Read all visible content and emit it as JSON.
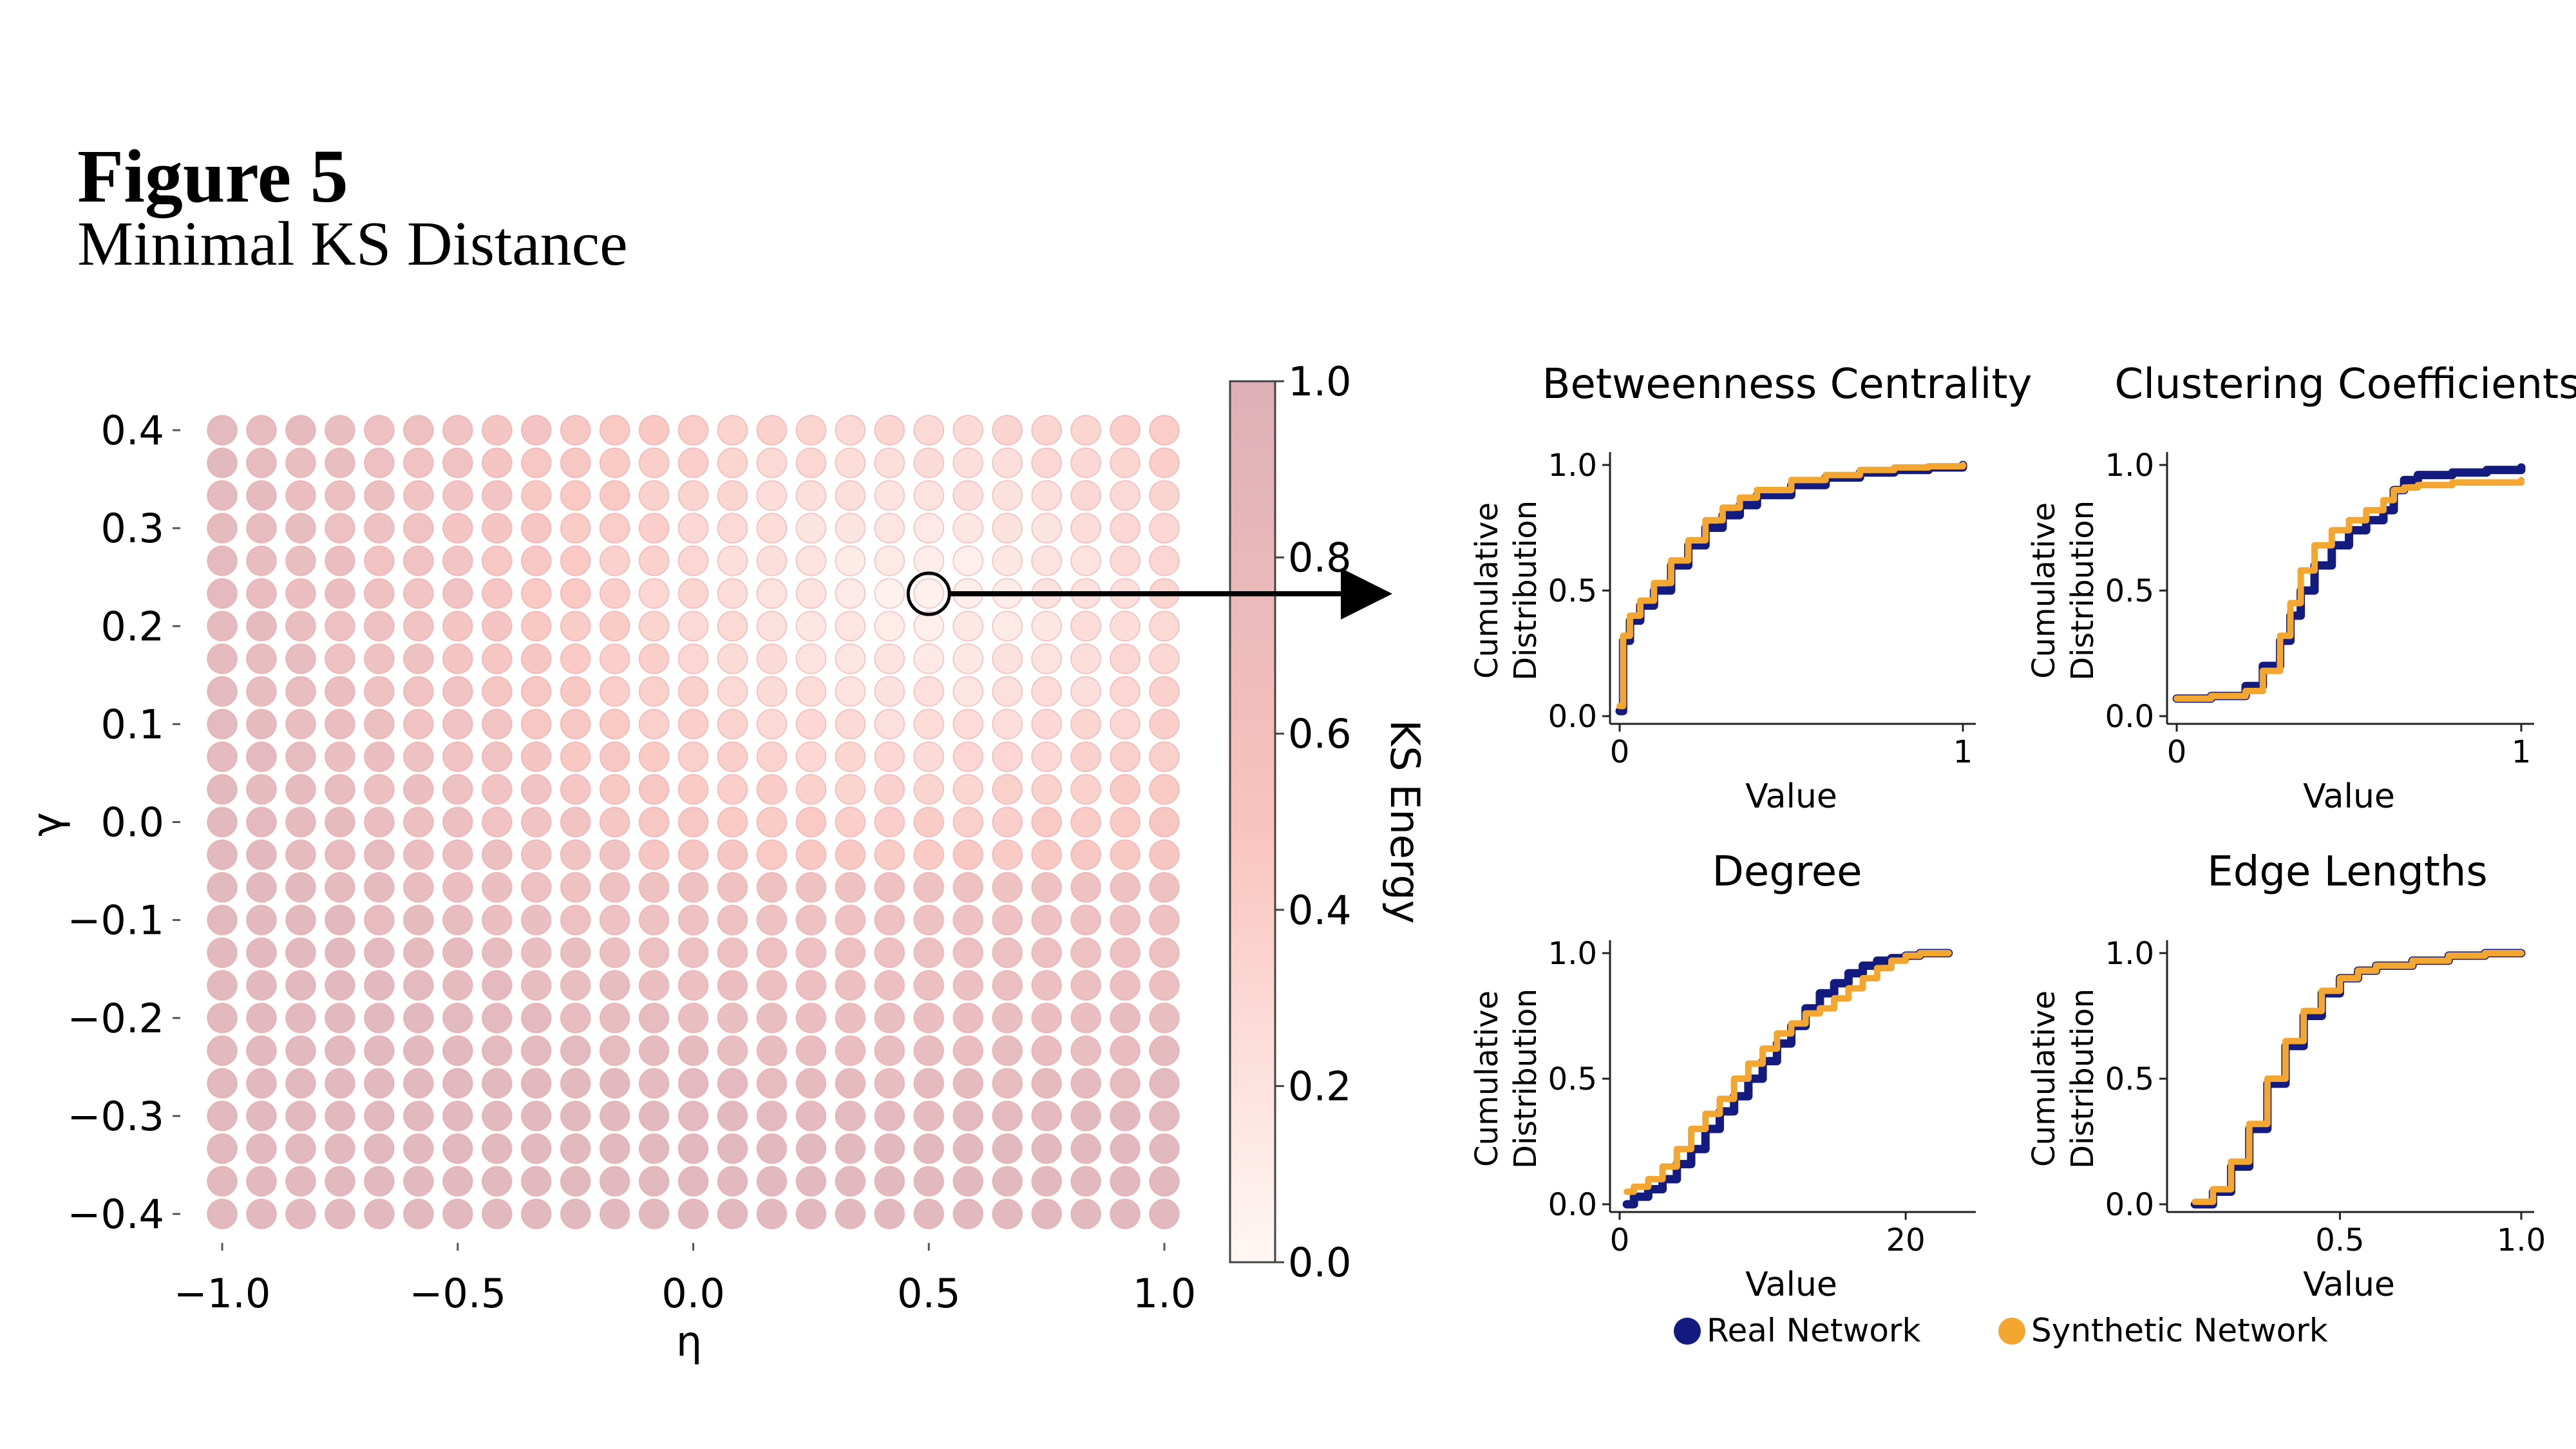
{
  "figure": {
    "title": "Figure 5",
    "subtitle": "Minimal KS Distance"
  },
  "chart_data": [
    {
      "type": "heatmap",
      "description": "",
      "xlabel": "η",
      "ylabel": "γ",
      "x_ticks": [
        "−1.0",
        "−0.5",
        "0.0",
        "0.5",
        "1.0"
      ],
      "x_tick_values": [
        -1.0,
        -0.5,
        0.0,
        0.5,
        1.0
      ],
      "y_ticks": [
        "0.4",
        "0.3",
        "0.2",
        "0.1",
        "0.0",
        "−0.1",
        "−0.2",
        "−0.3",
        "−0.4"
      ],
      "y_tick_values": [
        0.4,
        0.3,
        0.2,
        0.1,
        0.0,
        -0.1,
        -0.2,
        -0.3,
        -0.4
      ],
      "xlim": [
        -1.0,
        1.0
      ],
      "ylim": [
        -0.4,
        0.4
      ],
      "grid_size": [
        25,
        25
      ],
      "colorbar": {
        "label": "KS Energy",
        "ticks": [
          "0.0",
          "0.2",
          "0.4",
          "0.6",
          "0.8",
          "1.0"
        ],
        "tick_values": [
          0.0,
          0.2,
          0.4,
          0.6,
          0.8,
          1.0
        ],
        "range": [
          0.0,
          1.0
        ],
        "color_low": "#fff7f5",
        "color_mid": "#f9c3bd",
        "color_high": "#ddb0b8"
      },
      "highlight": {
        "eta": 0.5,
        "gamma": 0.233
      }
    },
    {
      "type": "line",
      "title": "Betweenness Centrality",
      "xlabel": "Value",
      "ylabel": "Cumulative Distribution",
      "xlim": [
        0,
        1
      ],
      "ylim": [
        0,
        1
      ],
      "x_ticks": [
        "0",
        "1"
      ],
      "x_tick_values": [
        0,
        1
      ],
      "y_ticks": [
        "0.0",
        "0.5",
        "1.0"
      ],
      "y_tick_values": [
        0,
        0.5,
        1.0
      ],
      "series": [
        {
          "color": "#131a80",
          "x": [
            0,
            0.01,
            0.03,
            0.06,
            0.1,
            0.15,
            0.2,
            0.25,
            0.3,
            0.35,
            0.4,
            0.5,
            0.6,
            0.7,
            0.8,
            0.9,
            1.0
          ],
          "y": [
            0.02,
            0.3,
            0.38,
            0.44,
            0.5,
            0.6,
            0.68,
            0.75,
            0.8,
            0.84,
            0.88,
            0.92,
            0.95,
            0.97,
            0.98,
            0.99,
            1.0
          ]
        },
        {
          "color": "#f3a630",
          "x": [
            0,
            0.01,
            0.03,
            0.06,
            0.1,
            0.15,
            0.2,
            0.25,
            0.3,
            0.35,
            0.4,
            0.5,
            0.6,
            0.7,
            0.8,
            0.9,
            1.0
          ],
          "y": [
            0.04,
            0.32,
            0.4,
            0.46,
            0.53,
            0.62,
            0.7,
            0.78,
            0.83,
            0.87,
            0.9,
            0.94,
            0.96,
            0.98,
            0.99,
            0.995,
            1.0
          ]
        }
      ]
    },
    {
      "type": "line",
      "title": "Clustering Coefficients",
      "xlabel": "Value",
      "ylabel": "Cumulative Distribution",
      "xlim": [
        0,
        1
      ],
      "ylim": [
        0,
        1
      ],
      "x_ticks": [
        "0",
        "1"
      ],
      "x_tick_values": [
        0,
        1
      ],
      "y_ticks": [
        "0.0",
        "0.5",
        "1.0"
      ],
      "y_tick_values": [
        0,
        0.5,
        1.0
      ],
      "series": [
        {
          "color": "#131a80",
          "x": [
            0,
            0.1,
            0.2,
            0.25,
            0.3,
            0.33,
            0.36,
            0.4,
            0.45,
            0.5,
            0.55,
            0.6,
            0.63,
            0.66,
            0.7,
            0.8,
            0.9,
            1.0
          ],
          "y": [
            0.07,
            0.08,
            0.12,
            0.2,
            0.3,
            0.4,
            0.5,
            0.6,
            0.68,
            0.74,
            0.78,
            0.82,
            0.9,
            0.94,
            0.96,
            0.97,
            0.98,
            0.99
          ]
        },
        {
          "color": "#f3a630",
          "x": [
            0,
            0.1,
            0.2,
            0.25,
            0.3,
            0.33,
            0.36,
            0.4,
            0.45,
            0.5,
            0.55,
            0.6,
            0.63,
            0.66,
            0.7,
            0.8,
            0.9,
            1.0
          ],
          "y": [
            0.07,
            0.08,
            0.1,
            0.18,
            0.32,
            0.45,
            0.58,
            0.68,
            0.74,
            0.78,
            0.82,
            0.86,
            0.9,
            0.91,
            0.92,
            0.93,
            0.93,
            0.94
          ]
        }
      ]
    },
    {
      "type": "line",
      "title": "Degree",
      "xlabel": "Value",
      "ylabel": "Cumulative Distribution",
      "xlim": [
        0,
        24
      ],
      "ylim": [
        0,
        1
      ],
      "x_ticks": [
        "0",
        "20"
      ],
      "x_tick_values": [
        0,
        20
      ],
      "y_ticks": [
        "0.0",
        "0.5",
        "1.0"
      ],
      "y_tick_values": [
        0,
        0.5,
        1.0
      ],
      "series": [
        {
          "color": "#131a80",
          "x": [
            0.5,
            1,
            2,
            3,
            4,
            5,
            6,
            7,
            8,
            9,
            10,
            11,
            12,
            13,
            14,
            15,
            16,
            17,
            18,
            19,
            20,
            21,
            22,
            23
          ],
          "y": [
            0.0,
            0.03,
            0.06,
            0.1,
            0.16,
            0.22,
            0.3,
            0.37,
            0.43,
            0.5,
            0.57,
            0.64,
            0.71,
            0.78,
            0.84,
            0.88,
            0.92,
            0.95,
            0.97,
            0.98,
            0.99,
            1.0,
            1.0,
            1.0
          ]
        },
        {
          "color": "#f3a630",
          "x": [
            0.5,
            1,
            2,
            3,
            4,
            5,
            6,
            7,
            8,
            9,
            10,
            11,
            12,
            13,
            14,
            15,
            16,
            17,
            18,
            19,
            20,
            21,
            22,
            23
          ],
          "y": [
            0.05,
            0.07,
            0.1,
            0.15,
            0.22,
            0.3,
            0.36,
            0.42,
            0.5,
            0.56,
            0.62,
            0.68,
            0.72,
            0.76,
            0.78,
            0.82,
            0.86,
            0.9,
            0.94,
            0.97,
            0.99,
            1.0,
            1.0,
            1.0
          ]
        }
      ]
    },
    {
      "type": "line",
      "title": "Edge Lengths",
      "xlabel": "Value",
      "ylabel": "Cumulative Distribution",
      "xlim": [
        0.05,
        1.0
      ],
      "ylim": [
        0,
        1
      ],
      "x_ticks": [
        "0.5",
        "1.0"
      ],
      "x_tick_values": [
        0.5,
        1.0
      ],
      "y_ticks": [
        "0.0",
        "0.5",
        "1.0"
      ],
      "y_tick_values": [
        0,
        0.5,
        1.0
      ],
      "series": [
        {
          "color": "#131a80",
          "x": [
            0.1,
            0.15,
            0.2,
            0.25,
            0.3,
            0.35,
            0.4,
            0.45,
            0.5,
            0.55,
            0.6,
            0.7,
            0.8,
            0.9,
            1.0
          ],
          "y": [
            0.0,
            0.05,
            0.15,
            0.3,
            0.48,
            0.63,
            0.75,
            0.84,
            0.9,
            0.93,
            0.95,
            0.97,
            0.99,
            1.0,
            1.0
          ]
        },
        {
          "color": "#f3a630",
          "x": [
            0.1,
            0.15,
            0.2,
            0.25,
            0.3,
            0.35,
            0.4,
            0.45,
            0.5,
            0.55,
            0.6,
            0.7,
            0.8,
            0.9,
            1.0
          ],
          "y": [
            0.01,
            0.06,
            0.17,
            0.32,
            0.5,
            0.65,
            0.77,
            0.85,
            0.9,
            0.93,
            0.95,
            0.97,
            0.99,
            1.0,
            1.0
          ]
        }
      ]
    }
  ],
  "legend": {
    "items": [
      {
        "label": "Real Network",
        "color": "#131a80"
      },
      {
        "label": "Synthetic Network",
        "color": "#f3a630"
      }
    ]
  }
}
